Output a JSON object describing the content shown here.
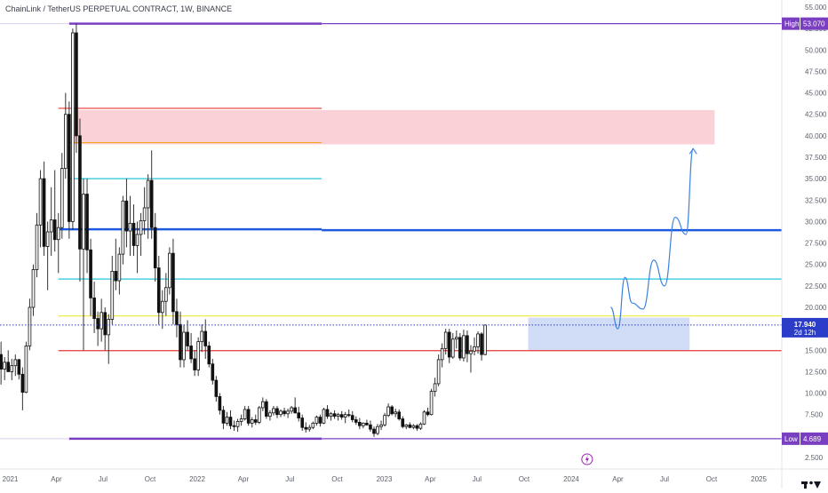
{
  "header": {
    "title": "ChainLink / TetherUS PERPETUAL CONTRACT, 1W, BINANCE"
  },
  "colors": {
    "up": "#ffffff",
    "down": "#111111",
    "wick": "#333333",
    "high_low_line": "#7a3fc0",
    "red_line": "#e53935",
    "orange_line": "#f5a623",
    "cyan_line": "#26c6da",
    "blue_line": "#1e5ae0",
    "yellow_line": "#f4e94a",
    "red_zone": "#f8c9cf",
    "blue_zone": "#c9d6f5",
    "arrow": "#3b82e0",
    "price_line": "#2a3cc8"
  },
  "chart_data": {
    "type": "candlestick",
    "title": "ChainLink / TetherUS PERPETUAL CONTRACT, 1W, BINANCE",
    "ylim": [
      2.5,
      55
    ],
    "y_ticks": [
      "55.000",
      "52.500",
      "50.000",
      "47.500",
      "45.000",
      "42.500",
      "40.000",
      "37.500",
      "35.000",
      "32.500",
      "30.000",
      "27.500",
      "25.000",
      "22.500",
      "20.000",
      "17.500",
      "15.000",
      "12.500",
      "10.000",
      "7.500",
      "5.000",
      "2.500"
    ],
    "x_ticks": [
      {
        "label": "2021",
        "date": "2021-01-01"
      },
      {
        "label": "Apr",
        "date": "2021-04-01"
      },
      {
        "label": "Jul",
        "date": "2021-07-01"
      },
      {
        "label": "Oct",
        "date": "2021-10-01"
      },
      {
        "label": "2022",
        "date": "2022-01-01"
      },
      {
        "label": "Apr",
        "date": "2022-04-01"
      },
      {
        "label": "Jul",
        "date": "2022-07-01"
      },
      {
        "label": "Oct",
        "date": "2022-10-01"
      },
      {
        "label": "2023",
        "date": "2023-01-01"
      },
      {
        "label": "Apr",
        "date": "2023-04-01"
      },
      {
        "label": "Jul",
        "date": "2023-07-01"
      },
      {
        "label": "Oct",
        "date": "2023-10-01"
      },
      {
        "label": "2024",
        "date": "2024-01-01"
      },
      {
        "label": "Apr",
        "date": "2024-04-01"
      },
      {
        "label": "Jul",
        "date": "2024-07-01"
      },
      {
        "label": "Oct",
        "date": "2024-10-01"
      },
      {
        "label": "2025",
        "date": "2025-01-01"
      }
    ],
    "x_range": [
      "2020-12-12",
      "2025-02-15"
    ],
    "candles": {
      "start_week": "2020-12-14",
      "ohlc": [
        [
          14.5,
          16.0,
          11.0,
          12.8
        ],
        [
          12.8,
          14.2,
          11.5,
          13.6
        ],
        [
          13.6,
          15.0,
          12.5,
          12.5
        ],
        [
          12.5,
          14.0,
          11.5,
          13.2
        ],
        [
          13.2,
          14.5,
          12.0,
          13.9
        ],
        [
          13.9,
          14.0,
          11.6,
          12.2
        ],
        [
          12.2,
          13.0,
          8.0,
          10.1
        ],
        [
          10.1,
          16.0,
          10.0,
          15.5
        ],
        [
          15.5,
          21.0,
          15.0,
          20.0
        ],
        [
          20.0,
          25.0,
          19.0,
          24.4
        ],
        [
          24.4,
          31.0,
          23.5,
          29.6
        ],
        [
          29.6,
          36.0,
          27.0,
          35.0
        ],
        [
          35.0,
          37.0,
          26.0,
          27.1
        ],
        [
          27.1,
          30.0,
          22.0,
          28.8
        ],
        [
          28.8,
          34.0,
          26.0,
          30.2
        ],
        [
          30.2,
          36.0,
          26.5,
          27.9
        ],
        [
          27.9,
          31.0,
          24.0,
          29.3
        ],
        [
          29.3,
          38.0,
          28.0,
          36.2
        ],
        [
          36.2,
          45.0,
          35.0,
          42.5
        ],
        [
          42.5,
          44.0,
          28.0,
          30.0
        ],
        [
          30.0,
          52.5,
          29.0,
          52.0
        ],
        [
          52.0,
          53.07,
          38.0,
          40.0
        ],
        [
          40.0,
          42.0,
          23.0,
          26.8
        ],
        [
          26.8,
          35.0,
          15.0,
          33.2
        ],
        [
          33.2,
          35.0,
          24.0,
          26.7
        ],
        [
          26.7,
          28.0,
          19.0,
          21.1
        ],
        [
          21.1,
          23.0,
          17.0,
          18.7
        ],
        [
          18.7,
          19.5,
          15.5,
          17.5
        ],
        [
          17.5,
          21.0,
          16.0,
          19.4
        ],
        [
          19.4,
          20.0,
          15.0,
          16.8
        ],
        [
          16.8,
          19.2,
          13.4,
          18.6
        ],
        [
          18.6,
          26.0,
          18.0,
          24.2
        ],
        [
          24.2,
          28.0,
          22.0,
          23.1
        ],
        [
          23.1,
          27.0,
          21.5,
          26.2
        ],
        [
          26.2,
          33.0,
          25.0,
          32.4
        ],
        [
          32.4,
          35.0,
          27.0,
          28.9
        ],
        [
          28.9,
          33.0,
          26.0,
          29.8
        ],
        [
          29.8,
          32.0,
          26.0,
          27.2
        ],
        [
          27.2,
          30.0,
          24.0,
          28.5
        ],
        [
          28.5,
          31.0,
          26.0,
          30.1
        ],
        [
          30.1,
          34.0,
          28.5,
          31.6
        ],
        [
          31.6,
          35.5,
          28.0,
          34.8
        ],
        [
          34.8,
          38.3,
          28.0,
          29.3
        ],
        [
          29.3,
          31.0,
          23.0,
          24.6
        ],
        [
          24.6,
          26.0,
          18.0,
          19.4
        ],
        [
          19.4,
          22.0,
          17.5,
          20.7
        ],
        [
          20.7,
          24.0,
          19.0,
          22.3
        ],
        [
          22.3,
          27.0,
          21.5,
          26.3
        ],
        [
          26.3,
          28.0,
          18.0,
          19.5
        ],
        [
          19.5,
          21.0,
          16.5,
          18.0
        ],
        [
          18.0,
          19.5,
          13.0,
          13.9
        ],
        [
          13.9,
          18.0,
          13.0,
          17.1
        ],
        [
          17.1,
          18.5,
          15.0,
          15.5
        ],
        [
          15.5,
          17.0,
          13.5,
          14.0
        ],
        [
          14.0,
          15.0,
          12.0,
          12.7
        ],
        [
          12.7,
          16.5,
          12.0,
          16.0
        ],
        [
          16.0,
          18.0,
          14.8,
          17.2
        ],
        [
          17.2,
          18.6,
          14.0,
          15.5
        ],
        [
          15.5,
          16.0,
          13.0,
          13.4
        ],
        [
          13.4,
          14.0,
          11.0,
          11.5
        ],
        [
          11.5,
          12.0,
          9.0,
          9.6
        ],
        [
          9.6,
          10.0,
          7.5,
          8.0
        ],
        [
          8.0,
          8.5,
          5.8,
          6.5
        ],
        [
          6.5,
          7.8,
          6.2,
          7.2
        ],
        [
          7.2,
          8.0,
          5.8,
          6.2
        ],
        [
          6.2,
          6.8,
          5.6,
          6.1
        ],
        [
          6.1,
          7.0,
          5.5,
          6.7
        ],
        [
          6.7,
          7.5,
          6.2,
          7.0
        ],
        [
          7.0,
          8.5,
          6.8,
          8.1
        ],
        [
          8.1,
          8.5,
          6.2,
          6.5
        ],
        [
          6.5,
          7.2,
          6.0,
          6.9
        ],
        [
          6.9,
          7.5,
          6.3,
          6.6
        ],
        [
          6.6,
          8.5,
          6.4,
          8.3
        ],
        [
          8.3,
          9.5,
          7.9,
          9.0
        ],
        [
          9.0,
          9.3,
          7.0,
          7.3
        ],
        [
          7.3,
          8.0,
          6.8,
          7.7
        ],
        [
          7.7,
          8.5,
          7.4,
          8.2
        ],
        [
          8.2,
          8.5,
          7.1,
          7.5
        ],
        [
          7.5,
          8.1,
          7.2,
          7.9
        ],
        [
          7.9,
          8.3,
          7.3,
          7.6
        ],
        [
          7.6,
          8.2,
          7.1,
          7.9
        ],
        [
          7.9,
          8.5,
          7.6,
          8.3
        ],
        [
          8.3,
          9.5,
          7.6,
          7.7
        ],
        [
          7.7,
          8.4,
          6.7,
          7.1
        ],
        [
          7.1,
          7.5,
          5.6,
          6.0
        ],
        [
          6.0,
          6.6,
          5.4,
          5.8
        ],
        [
          5.8,
          6.3,
          5.5,
          6.0
        ],
        [
          6.0,
          6.7,
          5.8,
          6.5
        ],
        [
          6.5,
          7.4,
          6.2,
          7.2
        ],
        [
          7.2,
          7.5,
          6.1,
          6.5
        ],
        [
          6.5,
          8.3,
          6.4,
          8.1
        ],
        [
          8.1,
          8.6,
          7.0,
          7.3
        ],
        [
          7.3,
          7.8,
          6.8,
          7.6
        ],
        [
          7.6,
          8.0,
          7.0,
          7.3
        ],
        [
          7.3,
          7.7,
          6.8,
          7.5
        ],
        [
          7.5,
          7.9,
          6.9,
          7.2
        ],
        [
          7.2,
          7.8,
          6.5,
          7.5
        ],
        [
          7.5,
          8.1,
          7.2,
          7.4
        ],
        [
          7.4,
          7.9,
          6.6,
          6.9
        ],
        [
          6.9,
          7.3,
          6.3,
          6.6
        ],
        [
          6.6,
          7.1,
          5.8,
          6.2
        ],
        [
          6.2,
          6.6,
          5.9,
          6.5
        ],
        [
          6.5,
          6.9,
          6.2,
          6.3
        ],
        [
          6.3,
          6.8,
          5.5,
          5.8
        ],
        [
          5.8,
          6.1,
          4.9,
          5.3
        ],
        [
          5.3,
          6.4,
          5.1,
          6.1
        ],
        [
          6.1,
          6.8,
          5.7,
          6.3
        ],
        [
          6.3,
          7.7,
          6.1,
          7.4
        ],
        [
          7.4,
          8.8,
          7.2,
          8.4
        ],
        [
          8.4,
          8.6,
          7.4,
          7.6
        ],
        [
          7.6,
          8.2,
          7.2,
          7.8
        ],
        [
          7.8,
          8.1,
          6.8,
          7.0
        ],
        [
          7.0,
          7.3,
          5.9,
          6.1
        ],
        [
          6.1,
          6.4,
          5.8,
          6.3
        ],
        [
          6.3,
          6.6,
          5.9,
          6.0
        ],
        [
          6.0,
          6.4,
          5.8,
          6.2
        ],
        [
          6.2,
          6.4,
          5.6,
          5.9
        ],
        [
          5.9,
          6.6,
          5.7,
          6.4
        ],
        [
          6.4,
          8.0,
          6.3,
          7.8
        ],
        [
          7.8,
          8.3,
          7.3,
          7.5
        ],
        [
          7.5,
          10.5,
          7.4,
          10.2
        ],
        [
          10.2,
          11.8,
          9.6,
          11.1
        ],
        [
          11.1,
          14.5,
          10.8,
          13.9
        ],
        [
          13.9,
          15.8,
          13.0,
          15.2
        ],
        [
          15.2,
          17.5,
          14.5,
          17.1
        ],
        [
          17.1,
          17.5,
          13.5,
          14.2
        ],
        [
          14.2,
          17.0,
          14.0,
          16.3
        ],
        [
          16.3,
          17.3,
          15.2,
          16.5
        ],
        [
          16.5,
          17.0,
          13.8,
          14.1
        ],
        [
          14.1,
          17.4,
          13.7,
          16.7
        ],
        [
          16.7,
          17.3,
          13.6,
          14.6
        ],
        [
          14.6,
          15.6,
          12.4,
          14.9
        ],
        [
          14.9,
          16.5,
          14.4,
          15.4
        ],
        [
          15.4,
          17.2,
          14.6,
          16.9
        ],
        [
          16.9,
          17.1,
          13.8,
          14.5
        ],
        [
          14.5,
          18.0,
          14.4,
          17.94
        ]
      ]
    },
    "horizontal_levels": [
      {
        "name": "High",
        "value": 53.07,
        "color_key": "high_low_line",
        "from": "2021-04-26",
        "to": "2022-09-01"
      },
      {
        "name": "Low",
        "value": 4.689,
        "color_key": "high_low_line",
        "from": "2021-04-26",
        "to": "2022-09-01"
      },
      {
        "value": 43.2,
        "color_key": "red_line",
        "from": "2021-04-05",
        "to": "2022-09-01"
      },
      {
        "value": 39.2,
        "color_key": "orange_line",
        "from": "2021-04-26",
        "to": "2022-09-01"
      },
      {
        "value": 35.0,
        "color_key": "cyan_line",
        "from": "2021-04-26",
        "to": "2022-09-01"
      },
      {
        "value": 29.1,
        "color_key": "blue_line",
        "from": "2021-04-05",
        "to": "2022-09-01"
      },
      {
        "value": 23.3,
        "color_key": "cyan_line",
        "from": "2021-04-05",
        "to": "2025-02-15"
      },
      {
        "value": 19.0,
        "color_key": "yellow_line",
        "from": "2021-04-05",
        "to": "2025-02-15"
      },
      {
        "value": 14.95,
        "color_key": "red_line",
        "from": "2021-04-05",
        "to": "2025-02-15"
      },
      {
        "value": 29.0,
        "color_key": "blue_line",
        "from": "2022-09-01",
        "to": "2025-02-15"
      }
    ],
    "zones": [
      {
        "color_key": "red_zone",
        "from": "2021-05-03",
        "to": "2024-10-07",
        "top": 43.0,
        "bottom": 39.0
      },
      {
        "color_key": "blue_zone",
        "from": "2023-10-09",
        "to": "2024-08-19",
        "top": 18.8,
        "bottom": 15.0
      }
    ],
    "projection_path": [
      [
        "2024-03-18",
        20.0
      ],
      [
        "2024-04-01",
        17.5
      ],
      [
        "2024-04-15",
        23.5
      ],
      [
        "2024-04-29",
        20.5
      ],
      [
        "2024-05-20",
        19.8
      ],
      [
        "2024-06-10",
        25.5
      ],
      [
        "2024-07-01",
        22.5
      ],
      [
        "2024-07-22",
        30.5
      ],
      [
        "2024-08-12",
        28.5
      ],
      [
        "2024-08-26",
        38.5
      ]
    ],
    "last_price": {
      "value": "17.940",
      "countdown": "2d 12h"
    },
    "high_label": {
      "label": "High",
      "value": "53.070"
    },
    "low_label": {
      "label": "Low",
      "value": "4.689"
    }
  }
}
